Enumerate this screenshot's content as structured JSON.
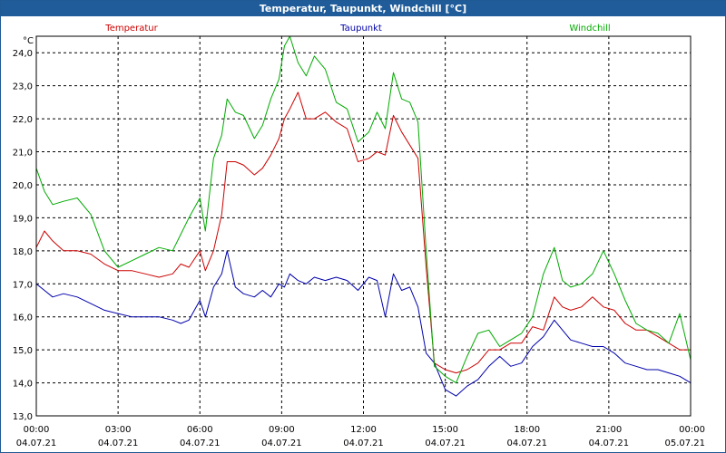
{
  "window": {
    "title": "Temperatur, Taupunkt, Windchill [°C]"
  },
  "chart_data": {
    "type": "line",
    "title": "Temperatur, Taupunkt, Windchill [°C]",
    "ylabel": "°C",
    "xlabel": "",
    "ylim": [
      13.0,
      24.5
    ],
    "yticks": [
      13.0,
      14.0,
      15.0,
      16.0,
      17.0,
      18.0,
      19.0,
      20.0,
      21.0,
      22.0,
      23.0,
      24.0
    ],
    "ytick_labels": [
      "13,0",
      "14,0",
      "15,0",
      "16,0",
      "17,0",
      "18,0",
      "19,0",
      "20,0",
      "21,0",
      "22,0",
      "23,0",
      "24,0"
    ],
    "xlim": [
      0,
      24
    ],
    "xticks": [
      0,
      3,
      6,
      9,
      12,
      15,
      18,
      21,
      24
    ],
    "xtick_time_labels": [
      "00:00",
      "03:00",
      "06:00",
      "09:00",
      "12:00",
      "15:00",
      "18:00",
      "21:00",
      "00:00"
    ],
    "xtick_date_labels": [
      "04.07.21",
      "04.07.21",
      "04.07.21",
      "04.07.21",
      "04.07.21",
      "04.07.21",
      "04.07.21",
      "04.07.21",
      "05.07.21"
    ],
    "grid": true,
    "series": [
      {
        "name": "Temperatur",
        "color": "#cc0000",
        "x": [
          0,
          0.3,
          0.6,
          1.0,
          1.5,
          2.0,
          2.5,
          3.0,
          3.5,
          4.0,
          4.5,
          5.0,
          5.3,
          5.6,
          6.0,
          6.2,
          6.5,
          6.8,
          7.0,
          7.3,
          7.6,
          8.0,
          8.3,
          8.6,
          8.9,
          9.1,
          9.3,
          9.6,
          9.9,
          10.2,
          10.6,
          11.0,
          11.4,
          11.8,
          12.2,
          12.5,
          12.8,
          13.1,
          13.4,
          13.7,
          14.0,
          14.3,
          14.6,
          15.0,
          15.4,
          15.8,
          16.2,
          16.6,
          17.0,
          17.4,
          17.8,
          18.2,
          18.6,
          19.0,
          19.3,
          19.6,
          20.0,
          20.4,
          20.8,
          21.2,
          21.6,
          22.0,
          22.4,
          22.8,
          23.2,
          23.6,
          24.0
        ],
        "y": [
          18.1,
          18.6,
          18.3,
          18.0,
          18.0,
          17.9,
          17.6,
          17.4,
          17.4,
          17.3,
          17.2,
          17.3,
          17.6,
          17.5,
          18.0,
          17.4,
          18.0,
          19.1,
          20.7,
          20.7,
          20.6,
          20.3,
          20.5,
          20.9,
          21.4,
          22.0,
          22.3,
          22.8,
          22.0,
          22.0,
          22.2,
          21.9,
          21.7,
          20.7,
          20.8,
          21.0,
          20.9,
          22.1,
          21.6,
          21.2,
          20.8,
          17.5,
          14.6,
          14.4,
          14.3,
          14.4,
          14.6,
          15.0,
          15.0,
          15.2,
          15.2,
          15.7,
          15.6,
          16.6,
          16.3,
          16.2,
          16.3,
          16.6,
          16.3,
          16.2,
          15.8,
          15.6,
          15.6,
          15.4,
          15.2,
          15.0,
          15.0
        ]
      },
      {
        "name": "Taupunkt",
        "color": "#0000aa",
        "x": [
          0,
          0.3,
          0.6,
          1.0,
          1.5,
          2.0,
          2.5,
          3.0,
          3.5,
          4.0,
          4.5,
          5.0,
          5.3,
          5.6,
          6.0,
          6.2,
          6.5,
          6.8,
          7.0,
          7.3,
          7.6,
          8.0,
          8.3,
          8.6,
          8.9,
          9.1,
          9.3,
          9.6,
          9.9,
          10.2,
          10.6,
          11.0,
          11.4,
          11.8,
          12.2,
          12.5,
          12.8,
          13.1,
          13.4,
          13.7,
          14.0,
          14.3,
          14.6,
          15.0,
          15.4,
          15.8,
          16.2,
          16.6,
          17.0,
          17.4,
          17.8,
          18.2,
          18.6,
          19.0,
          19.3,
          19.6,
          20.0,
          20.4,
          20.8,
          21.2,
          21.6,
          22.0,
          22.4,
          22.8,
          23.2,
          23.6,
          24.0
        ],
        "y": [
          17.0,
          16.8,
          16.6,
          16.7,
          16.6,
          16.4,
          16.2,
          16.1,
          16.0,
          16.0,
          16.0,
          15.9,
          15.8,
          15.9,
          16.5,
          16.0,
          16.9,
          17.3,
          18.0,
          16.9,
          16.7,
          16.6,
          16.8,
          16.6,
          17.0,
          16.9,
          17.3,
          17.1,
          17.0,
          17.2,
          17.1,
          17.2,
          17.1,
          16.8,
          17.2,
          17.1,
          16.0,
          17.3,
          16.8,
          16.9,
          16.3,
          14.9,
          14.6,
          13.8,
          13.6,
          13.9,
          14.1,
          14.5,
          14.8,
          14.5,
          14.6,
          15.1,
          15.4,
          15.9,
          15.6,
          15.3,
          15.2,
          15.1,
          15.1,
          14.9,
          14.6,
          14.5,
          14.4,
          14.4,
          14.3,
          14.2,
          14.0
        ]
      },
      {
        "name": "Windchill",
        "color": "#00aa00",
        "x": [
          0,
          0.3,
          0.6,
          1.0,
          1.5,
          2.0,
          2.5,
          3.0,
          3.5,
          4.0,
          4.5,
          5.0,
          5.3,
          5.6,
          6.0,
          6.2,
          6.5,
          6.8,
          7.0,
          7.3,
          7.6,
          8.0,
          8.3,
          8.6,
          8.9,
          9.1,
          9.3,
          9.6,
          9.9,
          10.2,
          10.6,
          11.0,
          11.4,
          11.8,
          12.2,
          12.5,
          12.8,
          13.1,
          13.4,
          13.7,
          14.0,
          14.3,
          14.6,
          15.0,
          15.4,
          15.8,
          16.2,
          16.6,
          17.0,
          17.4,
          17.8,
          18.2,
          18.6,
          19.0,
          19.3,
          19.6,
          20.0,
          20.4,
          20.8,
          21.2,
          21.6,
          22.0,
          22.4,
          22.8,
          23.2,
          23.6,
          24.0
        ],
        "y": [
          20.5,
          19.8,
          19.4,
          19.5,
          19.6,
          19.1,
          18.0,
          17.5,
          17.7,
          17.9,
          18.1,
          18.0,
          18.5,
          19.0,
          19.6,
          18.6,
          20.8,
          21.5,
          22.6,
          22.2,
          22.1,
          21.4,
          21.8,
          22.6,
          23.2,
          24.2,
          24.5,
          23.7,
          23.3,
          23.9,
          23.5,
          22.5,
          22.3,
          21.3,
          21.6,
          22.2,
          21.7,
          23.4,
          22.6,
          22.5,
          21.9,
          18.0,
          14.5,
          14.2,
          14.0,
          14.8,
          15.5,
          15.6,
          15.1,
          15.3,
          15.5,
          16.0,
          17.3,
          18.1,
          17.1,
          16.9,
          17.0,
          17.3,
          18.0,
          17.3,
          16.5,
          15.8,
          15.6,
          15.5,
          15.2,
          16.1,
          14.7
        ]
      }
    ]
  }
}
